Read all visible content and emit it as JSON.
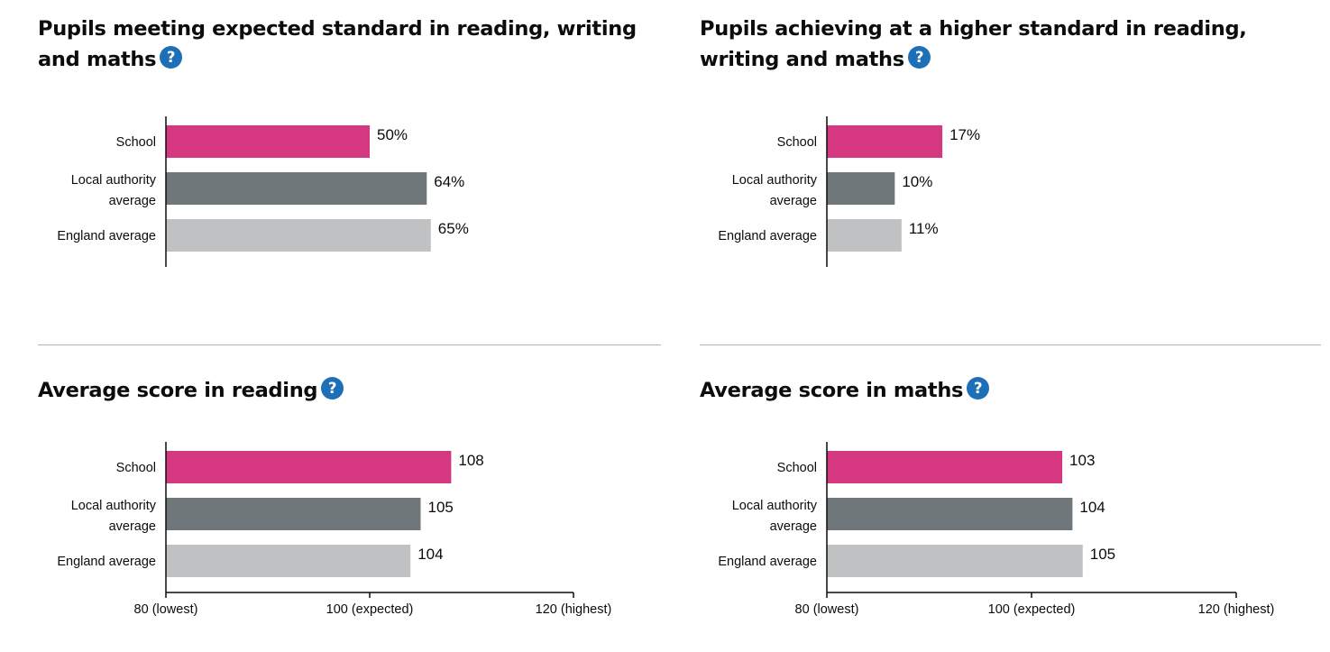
{
  "colors": {
    "school": "#d53880",
    "local_authority": "#6f777b",
    "england": "#bfc1c3",
    "help_icon": "#1d70b8",
    "axis": "#0b0c0c"
  },
  "panels": [
    {
      "title": "Pupils meeting expected standard in reading, writing and maths",
      "help_icon": "question-circle-icon"
    },
    {
      "title": "Pupils achieving at a higher standard in reading, writing and maths",
      "help_icon": "question-circle-icon"
    },
    {
      "title": "Average score in reading",
      "help_icon": "question-circle-icon"
    },
    {
      "title": "Average score in maths",
      "help_icon": "question-circle-icon"
    }
  ],
  "chart_data": [
    {
      "type": "bar",
      "orientation": "horizontal",
      "categories": [
        "School",
        "Local authority average",
        "England average"
      ],
      "values": [
        50,
        64,
        65
      ],
      "value_labels": [
        "50%",
        "64%",
        "65%"
      ],
      "unit": "%",
      "xlim": [
        0,
        100
      ]
    },
    {
      "type": "bar",
      "orientation": "horizontal",
      "categories": [
        "School",
        "Local authority average",
        "England average"
      ],
      "values": [
        17,
        10,
        11
      ],
      "value_labels": [
        "17%",
        "10%",
        "11%"
      ],
      "unit": "%",
      "xlim": [
        0,
        60
      ]
    },
    {
      "type": "bar",
      "orientation": "horizontal",
      "categories": [
        "School",
        "Local authority average",
        "England average"
      ],
      "values": [
        108,
        105,
        104
      ],
      "value_labels": [
        "108",
        "105",
        "104"
      ],
      "xlim": [
        80,
        120
      ],
      "ticks": [
        80,
        100,
        120
      ],
      "tick_labels": [
        "80 (lowest)",
        "100 (expected)",
        "120 (highest)"
      ]
    },
    {
      "type": "bar",
      "orientation": "horizontal",
      "categories": [
        "School",
        "Local authority average",
        "England average"
      ],
      "values": [
        103,
        104,
        105
      ],
      "value_labels": [
        "103",
        "104",
        "105"
      ],
      "xlim": [
        80,
        120
      ],
      "ticks": [
        80,
        100,
        120
      ],
      "tick_labels": [
        "80 (lowest)",
        "100 (expected)",
        "120 (highest)"
      ]
    }
  ]
}
